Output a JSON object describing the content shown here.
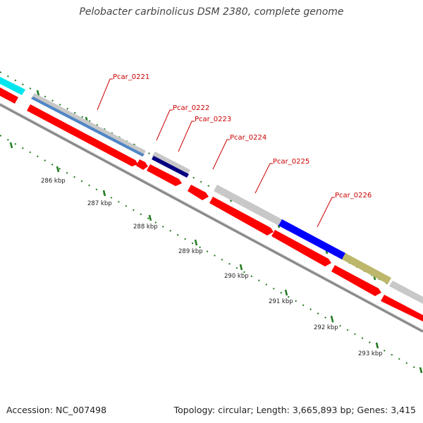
{
  "title": "Pelobacter carbinolicus DSM 2380, complete genome",
  "footer": {
    "accession": "Accession: NC_007498",
    "summary": "Topology: circular; Length: 3,665,893 bp; Genes: 3,415"
  },
  "colors": {
    "background": "#ffffff",
    "cds_red": "#ff0000",
    "label_red": "#cc0000",
    "backbone": "#8a8a8a",
    "tick_green": "#1f7a1f",
    "cyan": "#00e5ee",
    "steel_blue": "#4f86c6",
    "navy": "#000080",
    "blue": "#0000ff",
    "khaki": "#bdb76b",
    "grey": "#c8c8c8"
  },
  "kbp_labels": [
    "286 kbp",
    "287 kbp",
    "288 kbp",
    "289 kbp",
    "290 kbp",
    "291 kbp",
    "292 kbp",
    "293 kbp"
  ],
  "gene_labels": [
    "Pcar_0221",
    "Pcar_0222",
    "Pcar_0223",
    "Pcar_0224",
    "Pcar_0225",
    "Pcar_0226"
  ]
}
